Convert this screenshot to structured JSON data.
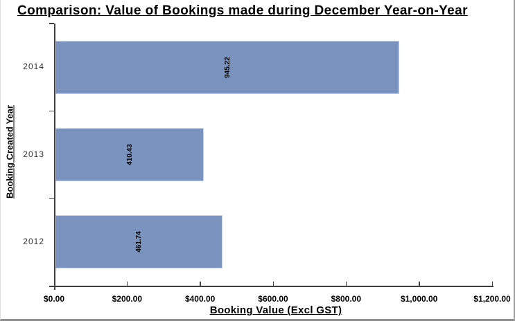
{
  "chart_data": {
    "type": "bar",
    "orientation": "horizontal",
    "title": "Comparison: Value of Bookings made during December Year-on-Year",
    "categories": [
      "2014",
      "2013",
      "2012"
    ],
    "values": [
      945.22,
      410.43,
      461.74
    ],
    "value_labels": [
      "945.22",
      "410.43",
      "461.74"
    ],
    "xlabel": "Booking Value (Excl GST)",
    "ylabel": "Booking Created Year",
    "xlim": [
      0,
      1200
    ],
    "x_tick_values": [
      0,
      200,
      400,
      600,
      800,
      1000,
      1200
    ],
    "x_tick_labels": [
      "$0.00",
      "$200.00",
      "$400.00",
      "$600.00",
      "$800.00",
      "$1,000.00",
      "$1,200.00"
    ],
    "grid": false,
    "legend": false,
    "colors": {
      "bar_fill": "#7A92BE",
      "bar_border": "#C9D2E6",
      "axis_line": "#3F3F3F",
      "title_text": "#000000",
      "x_tick_text": "#000000",
      "category_text": "#333333",
      "background": "#FFFFFF"
    }
  }
}
